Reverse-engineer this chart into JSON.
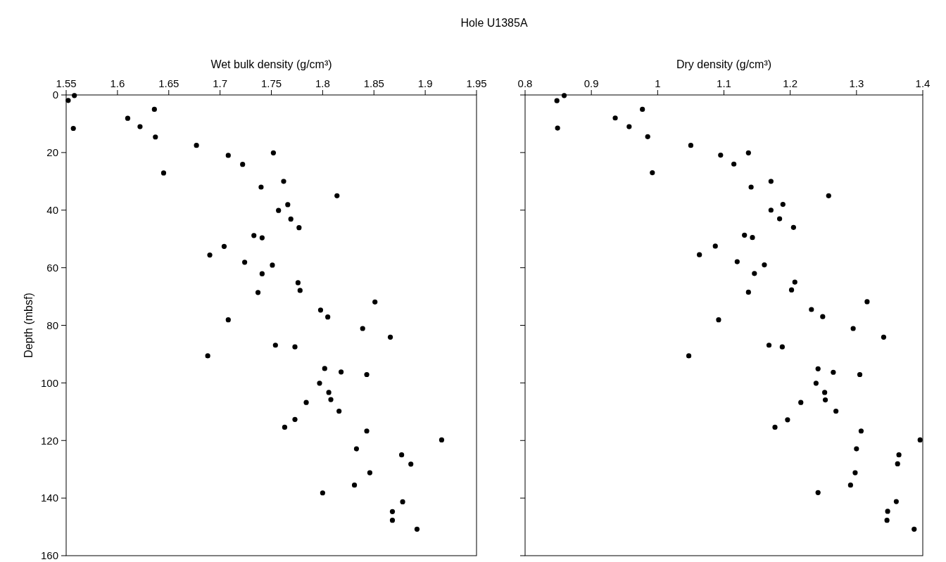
{
  "chart_data": [
    {
      "type": "scatter",
      "title": "Hole U1385A",
      "xlabel": "Wet bulk density (g/cm³)",
      "ylabel": "Depth (mbsf)",
      "xlim": [
        1.55,
        1.95
      ],
      "xticks": [
        1.55,
        1.6,
        1.65,
        1.7,
        1.75,
        1.8,
        1.85,
        1.9,
        1.95
      ],
      "ylim": [
        160,
        0
      ],
      "yticks": [
        0,
        20,
        40,
        60,
        80,
        100,
        120,
        140,
        160
      ],
      "marker": "circle",
      "series": [
        {
          "color": "#000000",
          "x": [
            1.558,
            1.552,
            1.636,
            1.61,
            1.622,
            1.557,
            1.637,
            1.677,
            1.752,
            1.708,
            1.722,
            1.645,
            1.762,
            1.74,
            1.814,
            1.766,
            1.757,
            1.769,
            1.777,
            1.733,
            1.741,
            1.704,
            1.69,
            1.724,
            1.751,
            1.741,
            1.776,
            1.778,
            1.737,
            1.851,
            1.798,
            1.805,
            1.708,
            1.839,
            1.866,
            1.754,
            1.773,
            1.688,
            1.802,
            1.818,
            1.843,
            1.797,
            1.806,
            1.808,
            1.784,
            1.816,
            1.773,
            1.763,
            1.843,
            1.916,
            1.833,
            1.877,
            1.886,
            1.846,
            1.831,
            1.8,
            1.878,
            1.868,
            1.868,
            1.892
          ],
          "values": [
            0.2,
            1.9,
            5.0,
            8.1,
            11.0,
            11.6,
            14.6,
            17.5,
            20.1,
            21.0,
            24.1,
            27.1,
            30.0,
            32.0,
            35.0,
            38.1,
            40.1,
            43.1,
            46.1,
            48.8,
            49.6,
            52.6,
            55.6,
            58.1,
            59.1,
            62.1,
            65.2,
            67.9,
            68.6,
            71.9,
            74.7,
            77.1,
            78.1,
            81.1,
            84.1,
            86.9,
            87.5,
            90.6,
            95.0,
            96.2,
            97.1,
            100.1,
            103.3,
            105.8,
            106.8,
            109.8,
            112.7,
            115.4,
            116.7,
            119.8,
            122.9,
            125.0,
            128.2,
            131.2,
            135.5,
            138.2,
            141.3,
            144.7,
            147.7,
            150.8
          ]
        }
      ]
    },
    {
      "type": "scatter",
      "xlabel": "Dry density (g/cm³)",
      "xlim": [
        0.8,
        1.4
      ],
      "xticks": [
        0.8,
        0.9,
        1,
        1.1,
        1.2,
        1.3,
        1.4
      ],
      "ylim": [
        160,
        0
      ],
      "yticks": [
        0,
        20,
        40,
        60,
        80,
        100,
        120,
        140,
        160
      ],
      "tick_labels": "x",
      "marker": "circle",
      "series": [
        {
          "color": "#000000",
          "x": [
            0.859,
            0.848,
            0.977,
            0.936,
            0.957,
            0.849,
            0.985,
            1.05,
            1.137,
            1.095,
            1.115,
            0.992,
            1.171,
            1.141,
            1.258,
            1.189,
            1.171,
            1.184,
            1.205,
            1.131,
            1.143,
            1.087,
            1.063,
            1.12,
            1.161,
            1.146,
            1.207,
            1.202,
            1.137,
            1.316,
            1.232,
            1.249,
            1.092,
            1.295,
            1.341,
            1.168,
            1.188,
            1.047,
            1.242,
            1.265,
            1.305,
            1.239,
            1.252,
            1.253,
            1.216,
            1.269,
            1.196,
            1.177,
            1.307,
            1.396,
            1.3,
            1.364,
            1.362,
            1.298,
            1.291,
            1.242,
            1.36,
            1.347,
            1.346,
            1.387
          ],
          "values": [
            0.2,
            2.0,
            5.0,
            8.0,
            11.0,
            11.5,
            14.5,
            17.5,
            20.1,
            20.9,
            24.0,
            27.0,
            30.0,
            32.0,
            35.0,
            38.0,
            40.0,
            43.0,
            46.0,
            48.7,
            49.5,
            52.5,
            55.5,
            57.9,
            59.0,
            62.0,
            65.0,
            67.7,
            68.5,
            71.8,
            74.5,
            77.0,
            78.1,
            81.1,
            84.1,
            86.9,
            87.5,
            90.6,
            95.1,
            96.3,
            97.1,
            100.1,
            103.3,
            105.9,
            106.8,
            109.8,
            112.8,
            115.4,
            116.7,
            119.8,
            122.9,
            125.0,
            128.1,
            131.2,
            135.5,
            138.1,
            141.2,
            144.6,
            147.7,
            150.8
          ]
        }
      ]
    }
  ]
}
